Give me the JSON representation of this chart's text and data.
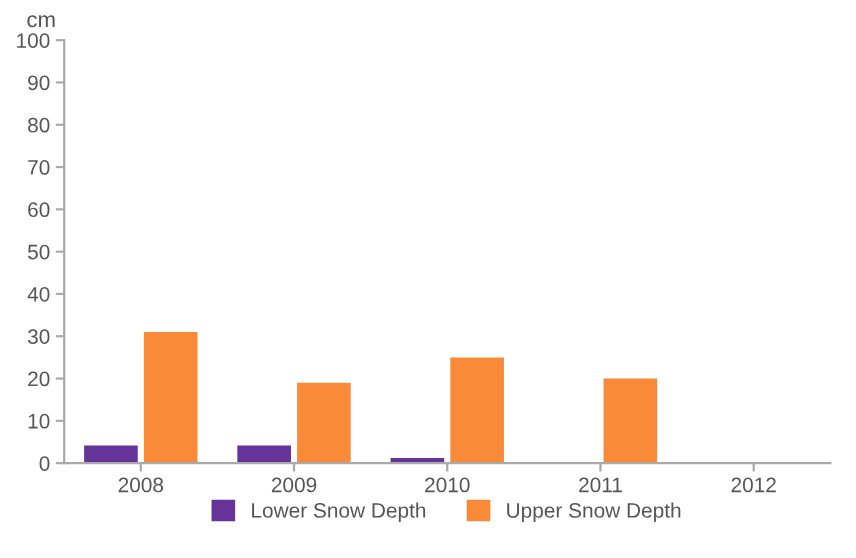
{
  "chart_data": {
    "type": "bar",
    "ylabel": "cm",
    "categories": [
      "2008",
      "2009",
      "2010",
      "2011",
      "2012"
    ],
    "series": [
      {
        "name": "Lower Snow Depth",
        "color": "#663399",
        "values": [
          4.2,
          4.2,
          1.2,
          null,
          null
        ]
      },
      {
        "name": "Upper Snow Depth",
        "color": "#f98a38",
        "values": [
          31,
          19,
          25,
          20,
          null
        ]
      }
    ],
    "ylim": [
      0,
      100
    ],
    "yticks": [
      0,
      10,
      20,
      30,
      40,
      50,
      60,
      70,
      80,
      90,
      100
    ],
    "grid": false,
    "legend": "bottom"
  }
}
